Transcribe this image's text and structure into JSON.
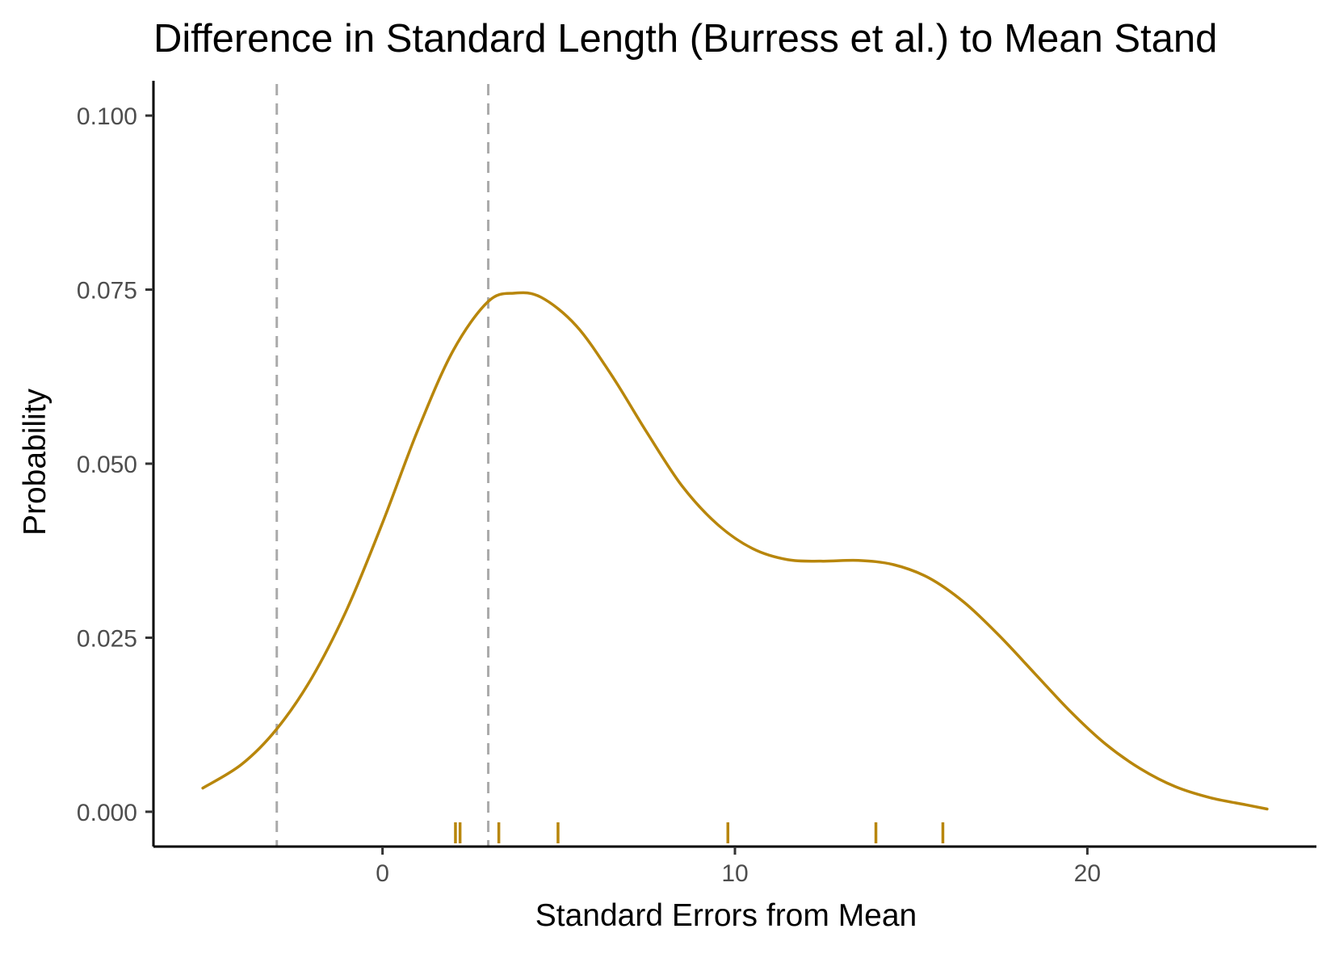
{
  "chart_data": {
    "type": "line",
    "title": "Difference in Standard Length (Burress et al.) to Mean Stand",
    "xlabel": "Standard Errors from Mean",
    "ylabel": "Probability",
    "xlim": [
      -6.5,
      26.5
    ],
    "ylim": [
      -0.005,
      0.105
    ],
    "x_ticks": [
      0,
      10,
      20
    ],
    "x_tick_labels": [
      "0",
      "10",
      "20"
    ],
    "y_ticks": [
      0,
      0.025,
      0.05,
      0.075,
      0.1
    ],
    "y_tick_labels": [
      "0.000",
      "0.025",
      "0.050",
      "0.075",
      "0.100"
    ],
    "grid": false,
    "series": [
      {
        "color": "#b8860b",
        "x": [
          -5.1,
          -4,
          -3,
          -2,
          -1,
          0,
          1,
          2,
          3,
          3.75,
          4.5,
          5.5,
          6.5,
          7.5,
          8.5,
          9.5,
          10.5,
          11.5,
          12.5,
          13.5,
          14.5,
          15.5,
          16.5,
          17.5,
          18.5,
          19.5,
          20.5,
          21.5,
          22.5,
          23.5,
          24.5,
          25.1
        ],
        "y": [
          0.0034,
          0.0068,
          0.0119,
          0.0193,
          0.0292,
          0.0415,
          0.0548,
          0.0662,
          0.0733,
          0.0745,
          0.0739,
          0.0698,
          0.0627,
          0.0545,
          0.0468,
          0.0413,
          0.0378,
          0.0362,
          0.036,
          0.0361,
          0.0355,
          0.0336,
          0.0301,
          0.0253,
          0.0199,
          0.0145,
          0.0098,
          0.0062,
          0.0036,
          0.002,
          0.001,
          0.0004
        ]
      }
    ],
    "reference_lines": [
      {
        "x": -3.0,
        "color": "#aaaaaa",
        "style": "dashed"
      },
      {
        "x": 3.0,
        "color": "#aaaaaa",
        "style": "dashed"
      }
    ],
    "rug": {
      "color": "#b8860b",
      "x": [
        2.07,
        2.2,
        3.3,
        4.98,
        9.8,
        14.0,
        15.9
      ]
    }
  }
}
